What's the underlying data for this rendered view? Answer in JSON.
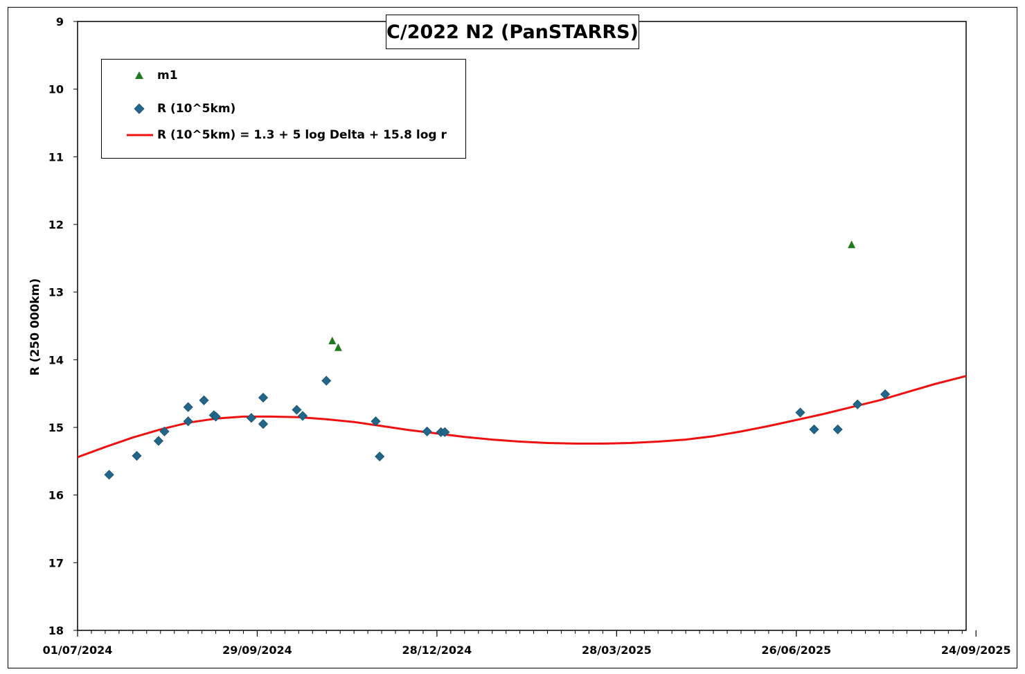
{
  "chart_data": {
    "type": "scatter",
    "title": "C/2022 N2 (PanSTARRS)",
    "ylabel": "R (250 000km)",
    "xlabel": "",
    "x_axis": {
      "type": "date",
      "min": "2024-07-01",
      "max": "2025-09-24",
      "tick_step_days": 91,
      "minor_step_days": 7,
      "format": "DD/MM/YYYY"
    },
    "xticks": [
      "01/07/2024",
      "29/09/2024",
      "28/12/2024",
      "28/03/2025",
      "26/06/2025",
      "24/09/2025"
    ],
    "ylim": [
      9,
      18
    ],
    "y_inverted": true,
    "yticks": [
      9,
      10,
      11,
      12,
      13,
      14,
      15,
      16,
      17,
      18
    ],
    "grid": false,
    "legend_position": "top-left",
    "series": [
      {
        "name": "m1",
        "kind": "scatter",
        "marker": "triangle",
        "color": "#1e7a1e",
        "points": [
          {
            "x": "2024-11-07",
            "y": 13.72
          },
          {
            "x": "2024-11-10",
            "y": 13.82
          },
          {
            "x": "2025-07-28",
            "y": 12.3
          }
        ]
      },
      {
        "name": "R (10^5km)",
        "kind": "scatter",
        "marker": "diamond",
        "color": "#22678a",
        "points": [
          {
            "x": "2024-07-17",
            "y": 15.7
          },
          {
            "x": "2024-07-31",
            "y": 15.42
          },
          {
            "x": "2024-08-11",
            "y": 15.2
          },
          {
            "x": "2024-08-14",
            "y": 15.06
          },
          {
            "x": "2024-08-26",
            "y": 14.91
          },
          {
            "x": "2024-08-26",
            "y": 14.7
          },
          {
            "x": "2024-09-03",
            "y": 14.6
          },
          {
            "x": "2024-09-08",
            "y": 14.82
          },
          {
            "x": "2024-09-09",
            "y": 14.84
          },
          {
            "x": "2024-09-27",
            "y": 14.86
          },
          {
            "x": "2024-10-03",
            "y": 14.56
          },
          {
            "x": "2024-10-03",
            "y": 14.95
          },
          {
            "x": "2024-10-20",
            "y": 14.74
          },
          {
            "x": "2024-10-23",
            "y": 14.83
          },
          {
            "x": "2024-11-04",
            "y": 14.31
          },
          {
            "x": "2024-11-29",
            "y": 14.91
          },
          {
            "x": "2024-12-01",
            "y": 15.43
          },
          {
            "x": "2024-12-25",
            "y": 15.06
          },
          {
            "x": "2025-01-01",
            "y": 15.07
          },
          {
            "x": "2025-01-03",
            "y": 15.07
          },
          {
            "x": "2025-07-02",
            "y": 14.78
          },
          {
            "x": "2025-07-09",
            "y": 15.03
          },
          {
            "x": "2025-07-21",
            "y": 15.03
          },
          {
            "x": "2025-07-31",
            "y": 14.66
          },
          {
            "x": "2025-08-14",
            "y": 14.51
          }
        ]
      },
      {
        "name": "R (10^5km) = 1.3 + 5 log Delta + 15.8 log r",
        "kind": "line",
        "color": "#ee1111",
        "points": [
          {
            "x": "2024-07-01",
            "y": 15.44
          },
          {
            "x": "2024-07-15",
            "y": 15.29
          },
          {
            "x": "2024-07-29",
            "y": 15.15
          },
          {
            "x": "2024-08-12",
            "y": 15.03
          },
          {
            "x": "2024-08-26",
            "y": 14.93
          },
          {
            "x": "2024-09-09",
            "y": 14.87
          },
          {
            "x": "2024-09-23",
            "y": 14.84
          },
          {
            "x": "2024-10-07",
            "y": 14.84
          },
          {
            "x": "2024-10-21",
            "y": 14.85
          },
          {
            "x": "2024-11-04",
            "y": 14.88
          },
          {
            "x": "2024-11-18",
            "y": 14.92
          },
          {
            "x": "2024-12-02",
            "y": 14.98
          },
          {
            "x": "2024-12-16",
            "y": 15.04
          },
          {
            "x": "2024-12-30",
            "y": 15.09
          },
          {
            "x": "2025-01-13",
            "y": 15.14
          },
          {
            "x": "2025-01-27",
            "y": 15.18
          },
          {
            "x": "2025-02-10",
            "y": 15.21
          },
          {
            "x": "2025-02-24",
            "y": 15.23
          },
          {
            "x": "2025-03-10",
            "y": 15.24
          },
          {
            "x": "2025-03-24",
            "y": 15.24
          },
          {
            "x": "2025-04-07",
            "y": 15.23
          },
          {
            "x": "2025-04-21",
            "y": 15.21
          },
          {
            "x": "2025-05-05",
            "y": 15.18
          },
          {
            "x": "2025-05-19",
            "y": 15.13
          },
          {
            "x": "2025-06-02",
            "y": 15.06
          },
          {
            "x": "2025-06-16",
            "y": 14.98
          },
          {
            "x": "2025-06-30",
            "y": 14.89
          },
          {
            "x": "2025-07-14",
            "y": 14.8
          },
          {
            "x": "2025-07-28",
            "y": 14.7
          },
          {
            "x": "2025-08-11",
            "y": 14.6
          },
          {
            "x": "2025-08-25",
            "y": 14.48
          },
          {
            "x": "2025-09-08",
            "y": 14.36
          },
          {
            "x": "2025-09-24",
            "y": 14.24
          }
        ]
      }
    ]
  }
}
